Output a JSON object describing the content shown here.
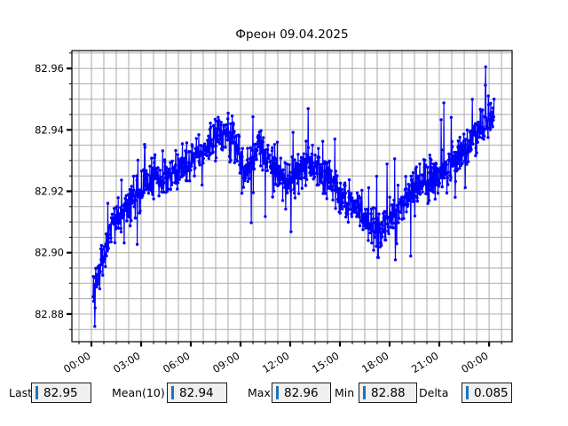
{
  "window": {
    "background": "#ffffff"
  },
  "chart_data": {
    "type": "line",
    "title": "Фреон 09.04.2025",
    "series_color": "#0000ff",
    "grid_color": "#aaaaaa",
    "frame_color": "#000000",
    "marker": "circle",
    "legend": "none",
    "xlim_hours": [
      -1.18,
      25.39
    ],
    "ylim": [
      82.871,
      82.9658
    ],
    "x_major_ticks_hours": [
      0,
      3,
      6,
      9,
      12,
      15,
      18,
      21,
      24
    ],
    "x_tick_labels": [
      "00:00",
      "03:00",
      "06:00",
      "09:00",
      "12:00",
      "15:00",
      "18:00",
      "21:00",
      "00:00"
    ],
    "x_minor_step_hours": 0.75,
    "y_major_ticks": [
      82.88,
      82.9,
      82.92,
      82.94,
      82.96
    ],
    "y_tick_labels": [
      "82.88",
      "82.90",
      "82.92",
      "82.94",
      "82.96"
    ],
    "y_minor_step": 0.005,
    "grid": true,
    "n_points": 1200,
    "t_start_hours": 0.1,
    "t_end_hours": 24.3,
    "noise_sigma": 0.0032,
    "spike_probability": 0.055,
    "spike_max": 0.013,
    "value_min": 82.876,
    "value_max": 82.9605,
    "max_time_hours": 23.8,
    "min_time_hours": 0.2,
    "last_value": 82.95,
    "trend": [
      [
        0.1,
        82.888
      ],
      [
        0.35,
        82.892
      ],
      [
        0.7,
        82.899
      ],
      [
        1.2,
        82.907
      ],
      [
        1.8,
        82.913
      ],
      [
        2.5,
        82.918
      ],
      [
        3.2,
        82.922
      ],
      [
        4.0,
        82.924
      ],
      [
        5.0,
        82.927
      ],
      [
        6.0,
        82.93
      ],
      [
        6.8,
        82.933
      ],
      [
        7.5,
        82.937
      ],
      [
        8.2,
        82.94
      ],
      [
        8.6,
        82.938
      ],
      [
        9.2,
        82.926
      ],
      [
        9.6,
        82.929
      ],
      [
        10.1,
        82.935
      ],
      [
        10.6,
        82.931
      ],
      [
        11.2,
        82.926
      ],
      [
        11.8,
        82.922
      ],
      [
        12.4,
        82.926
      ],
      [
        13.0,
        82.93
      ],
      [
        13.6,
        82.927
      ],
      [
        14.3,
        82.922
      ],
      [
        15.2,
        82.918
      ],
      [
        16.0,
        82.915
      ],
      [
        16.8,
        82.911
      ],
      [
        17.4,
        82.907
      ],
      [
        18.0,
        82.911
      ],
      [
        18.8,
        82.917
      ],
      [
        19.6,
        82.921
      ],
      [
        20.4,
        82.924
      ],
      [
        21.2,
        82.927
      ],
      [
        22.0,
        82.931
      ],
      [
        22.8,
        82.935
      ],
      [
        23.4,
        82.939
      ],
      [
        23.9,
        82.944
      ],
      [
        24.3,
        82.946
      ]
    ]
  },
  "stats": [
    {
      "label": "Last",
      "value": "82.95"
    },
    {
      "label": "Mean(10)",
      "value": "82.94"
    },
    {
      "label": "Max",
      "value": "82.96"
    },
    {
      "label": "Min",
      "value": "82.88"
    },
    {
      "label": "Delta",
      "value": "0.085"
    }
  ],
  "entry_style": {
    "background": "#f0f0f0",
    "caret_color": "#1b74bc"
  }
}
